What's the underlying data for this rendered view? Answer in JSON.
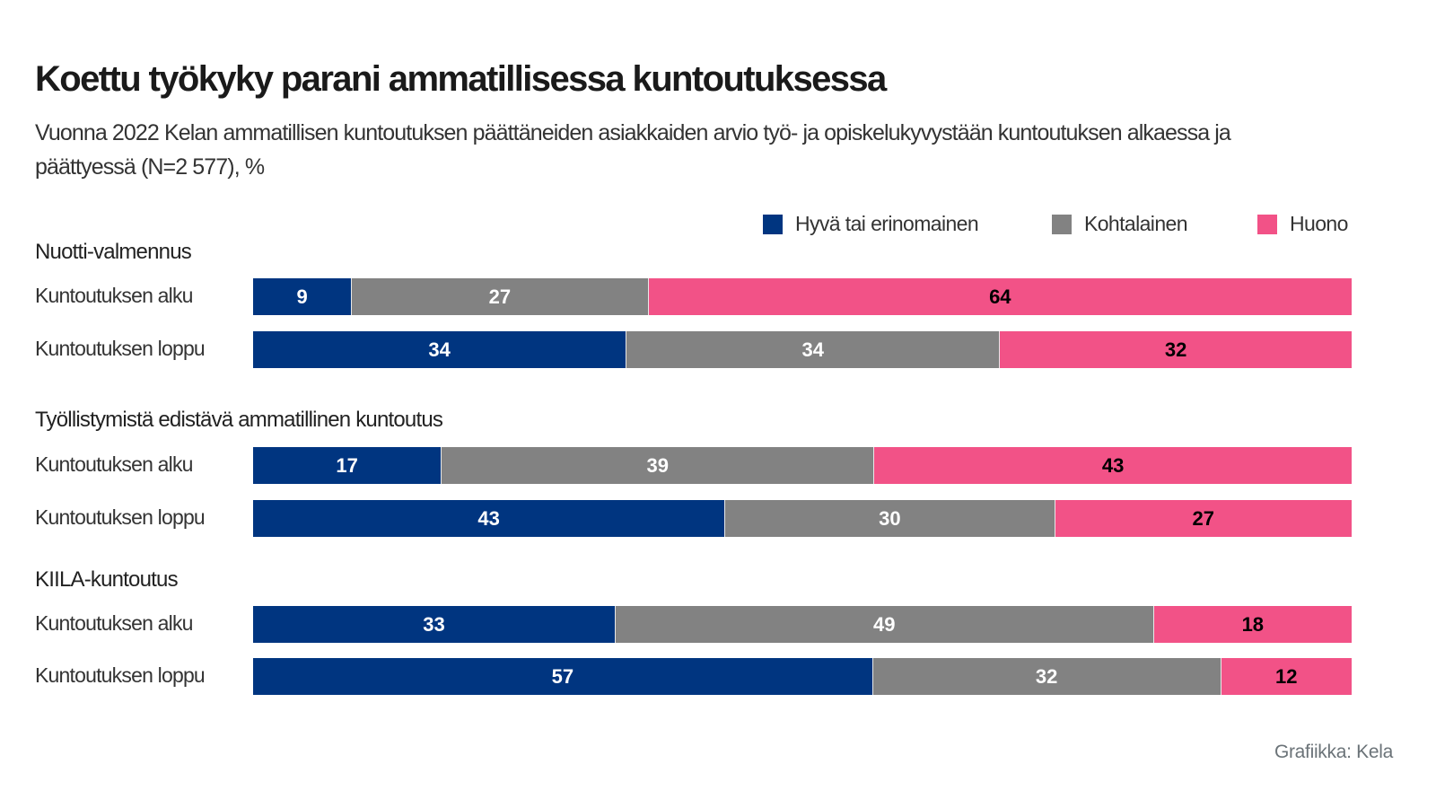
{
  "chart_data": {
    "type": "bar",
    "orientation": "horizontal",
    "stacked": true,
    "title": "Koettu työkyky parani ammatillisessa kuntoutuksessa",
    "subtitle_lines": [
      "Vuonna 2022 Kelan ammatillisen kuntoutuksen päättäneiden asiakkaiden arvio työ- ja opiskelukyvystään kuntoutuksen alkaessa ja",
      "päättyessä (N=2 577), %"
    ],
    "legend_placement": "top-right",
    "legend": [
      {
        "name": "Hyvä tai erinomainen",
        "color": "#003580"
      },
      {
        "name": "Kohtalainen",
        "color": "#828282"
      },
      {
        "name": "Huono",
        "color": "#f25287"
      }
    ],
    "xlim": [
      0,
      100
    ],
    "grid": false,
    "groups": [
      {
        "name": "Nuotti-valmennus",
        "rows": [
          {
            "label": "Kuntoutuksen alku",
            "values": [
              9,
              27,
              64
            ]
          },
          {
            "label": "Kuntoutuksen loppu",
            "values": [
              34,
              34,
              32
            ]
          }
        ]
      },
      {
        "name": "Työllistymistä edistävä ammatillinen kuntoutus",
        "rows": [
          {
            "label": "Kuntoutuksen alku",
            "values": [
              17,
              39,
              43
            ]
          },
          {
            "label": "Kuntoutuksen loppu",
            "values": [
              43,
              30,
              27
            ]
          }
        ]
      },
      {
        "name": "KIILA-kuntoutus",
        "rows": [
          {
            "label": "Kuntoutuksen alku",
            "values": [
              33,
              49,
              18
            ]
          },
          {
            "label": "Kuntoutuksen loppu",
            "values": [
              57,
              32,
              12
            ]
          }
        ]
      }
    ],
    "label_colors": [
      "#ffffff",
      "#ffffff",
      "#000000"
    ]
  },
  "footer": "Grafiikka: Kela"
}
